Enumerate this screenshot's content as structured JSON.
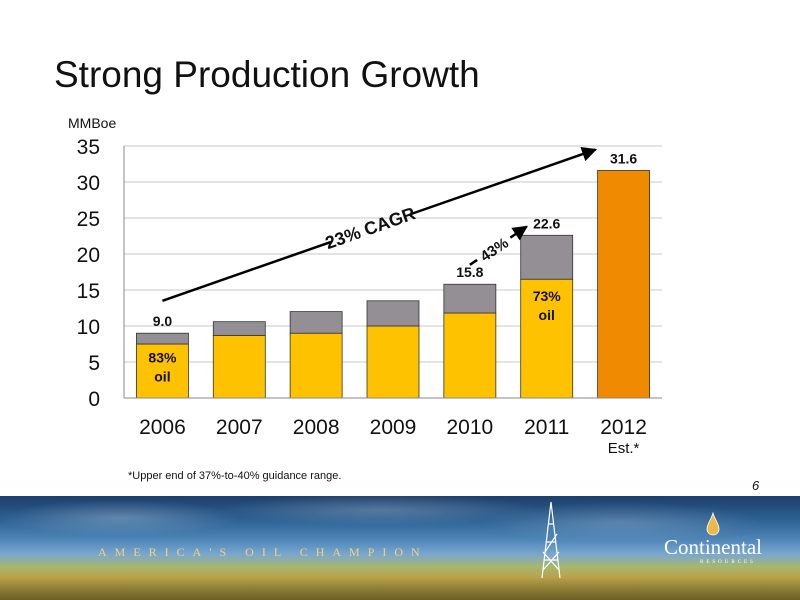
{
  "slide": {
    "title": "Strong Production Growth",
    "footnote": "*Upper end of 37%-to-40% guidance range.",
    "page_number": "6",
    "tagline": "AMERICA'S OIL CHAMPION",
    "logo_name": "Continental",
    "logo_subtitle": "RESOURCES"
  },
  "colors": {
    "oil": "#FFC200",
    "gas": "#948E95",
    "estimate": "#F08A00",
    "grid": "#C8C8C8"
  },
  "chart_data": {
    "type": "bar",
    "ylabel": "MMBoe",
    "ylim": [
      0,
      35
    ],
    "yticks": [
      "0",
      "5",
      "10",
      "15",
      "20",
      "25",
      "30",
      "35"
    ],
    "grid": true,
    "categories": [
      "2006",
      "2007",
      "2008",
      "2009",
      "2010",
      "2011",
      "2012"
    ],
    "category_sublabels": [
      "",
      "",
      "",
      "",
      "",
      "",
      "Est.*"
    ],
    "series": [
      {
        "values": [
          7.5,
          8.7,
          9.0,
          10.0,
          11.8,
          16.5,
          0
        ]
      },
      {
        "values": [
          1.5,
          1.9,
          3.0,
          3.5,
          4.0,
          6.1,
          0
        ]
      },
      {
        "values": [
          0,
          0,
          0,
          0,
          0,
          0,
          31.6
        ]
      }
    ],
    "totals": [
      9.0,
      10.6,
      12.0,
      13.5,
      15.8,
      22.6,
      31.6
    ],
    "data_labels": [
      {
        "category": "2006",
        "text": "9.0"
      },
      {
        "category": "2010",
        "text": "15.8"
      },
      {
        "category": "2011",
        "text": "22.6"
      },
      {
        "category": "2012",
        "text": "31.6"
      }
    ],
    "oil_share_labels": [
      {
        "category": "2006",
        "line1": "83%",
        "line2": "oil"
      },
      {
        "category": "2011",
        "line1": "73%",
        "line2": "oil"
      }
    ],
    "annotations": [
      {
        "text": "23% CAGR",
        "from_category": "2006",
        "from_value": 13.5,
        "to_category": "2012",
        "to_value": 34.5
      },
      {
        "text": "43%",
        "from_category": "2010",
        "from_value": 18.5,
        "to_category": "2011",
        "to_value": 23.8
      }
    ]
  }
}
